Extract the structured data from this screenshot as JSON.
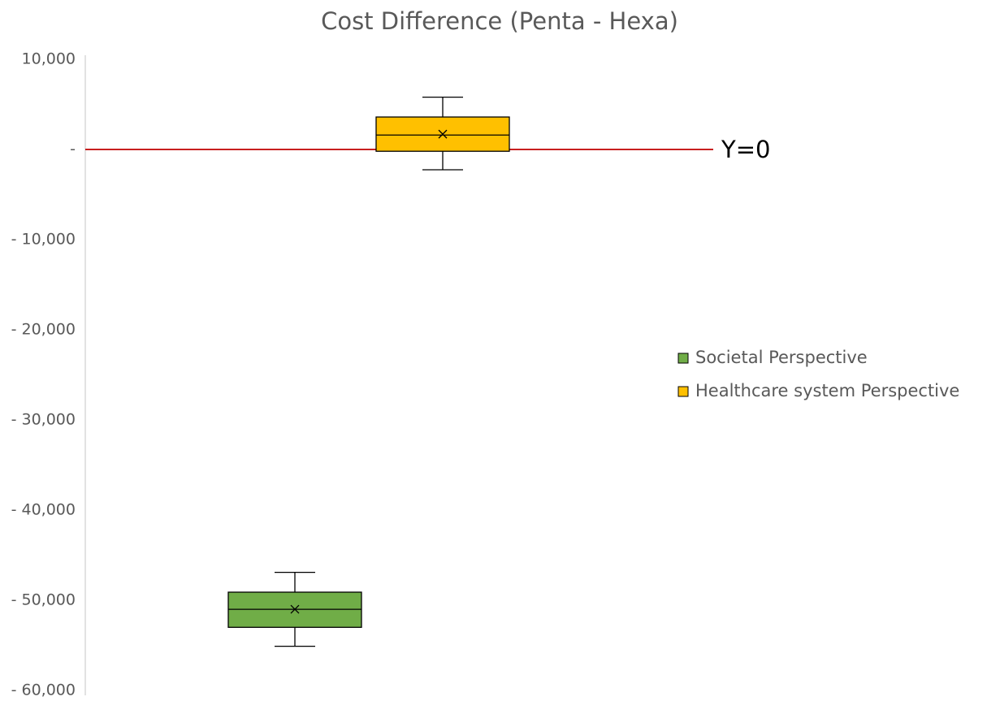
{
  "chart_data": {
    "type": "box",
    "title": "Cost Difference (Penta - Hexa)",
    "ylim": [
      -60000,
      10000
    ],
    "yticks": [
      {
        "value": 10000,
        "label": "10,000"
      },
      {
        "value": 0,
        "label": "-"
      },
      {
        "value": -10000,
        "label": "- 10,000"
      },
      {
        "value": -20000,
        "label": "- 20,000"
      },
      {
        "value": -30000,
        "label": "- 30,000"
      },
      {
        "value": -40000,
        "label": "- 40,000"
      },
      {
        "value": -50000,
        "label": "- 50,000"
      },
      {
        "value": -60000,
        "label": "- 60,000"
      }
    ],
    "series": [
      {
        "name": "Societal Perspective",
        "color": "#70ad47",
        "min": -55100,
        "q1": -53000,
        "median": -51000,
        "q3": -49100,
        "max": -46900,
        "mean": -51000
      },
      {
        "name": "Healthcare system Perspective",
        "color": "#ffc000",
        "min": -2250,
        "q1": -200,
        "median": 1600,
        "q3": 3600,
        "max": 5800,
        "mean": 1700
      }
    ],
    "reference_line": {
      "value": 0,
      "label": "Y=0",
      "color": "#c00000"
    },
    "legend": "right"
  }
}
